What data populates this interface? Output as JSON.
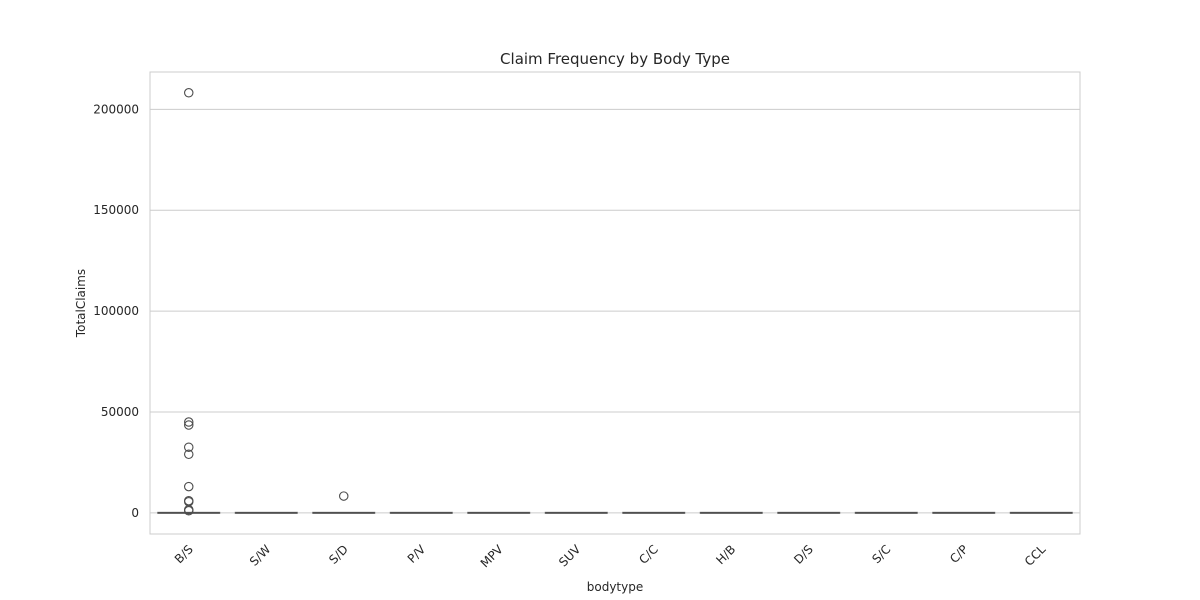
{
  "chart_data": {
    "type": "box",
    "title": "Claim Frequency by Body Type",
    "xlabel": "bodytype",
    "ylabel": "TotalClaims",
    "ylim": [
      -10500,
      218500
    ],
    "yticks": [
      0,
      50000,
      100000,
      150000,
      200000
    ],
    "grid": "horizontal",
    "categories": [
      "B/S",
      "S/W",
      "S/D",
      "P/V",
      "MPV",
      "SUV",
      "C/C",
      "H/B",
      "D/S",
      "S/C",
      "C/P",
      "CCL"
    ],
    "median": [
      0,
      0,
      0,
      0,
      0,
      0,
      0,
      0,
      0,
      0,
      0,
      0
    ],
    "q1": [
      0,
      0,
      0,
      0,
      0,
      0,
      0,
      0,
      0,
      0,
      0,
      0
    ],
    "q3": [
      0,
      0,
      0,
      0,
      0,
      0,
      0,
      0,
      0,
      0,
      0,
      0
    ],
    "outliers": [
      [
        208200,
        45000,
        43500,
        32500,
        29000,
        13000,
        6000,
        5500,
        1500,
        1000
      ],
      [],
      [
        8300
      ],
      [],
      [],
      [],
      [],
      [],
      [],
      [],
      [],
      []
    ]
  }
}
